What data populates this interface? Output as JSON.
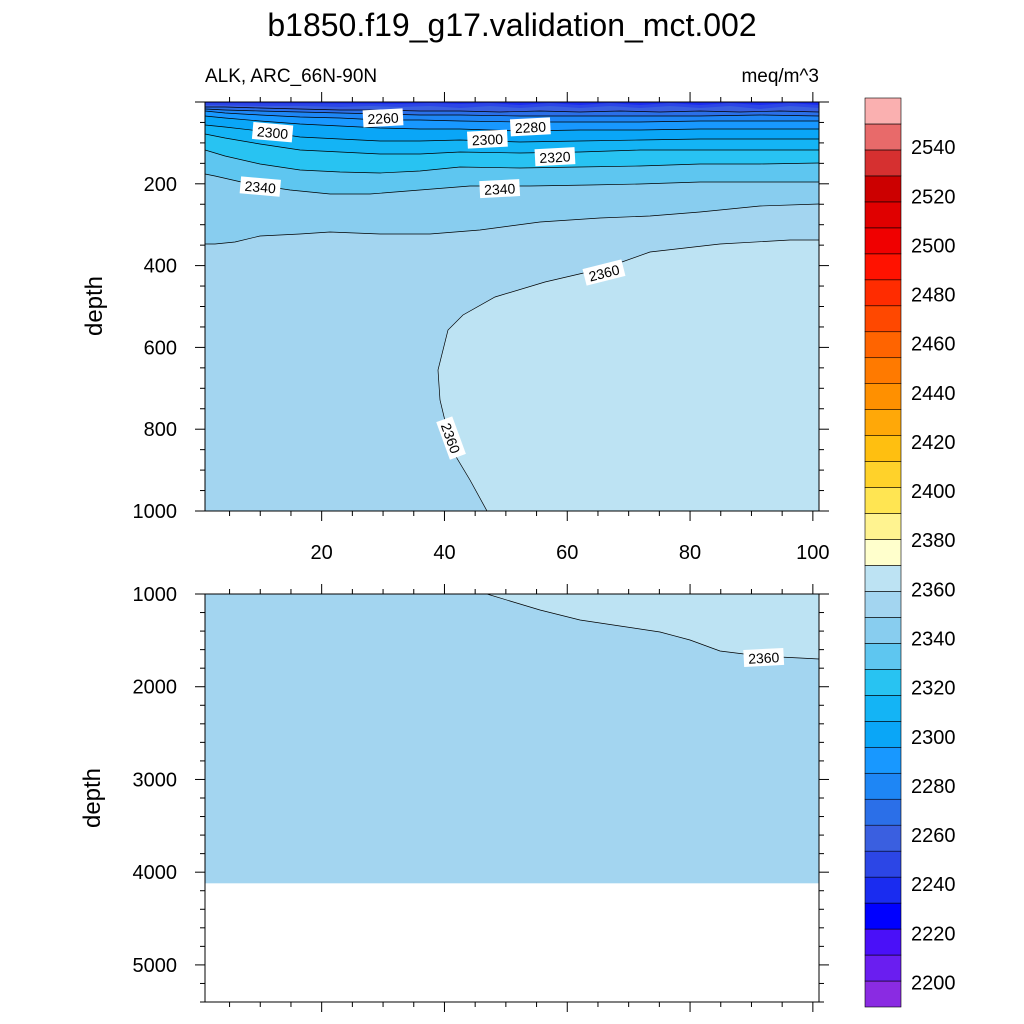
{
  "chart_data": {
    "type": "contour",
    "title": "b1850.f19_g17.validation_mct.002",
    "left_subtitle": "ALK, ARC_66N-90N",
    "right_subtitle": "meq/m^3",
    "panels": [
      {
        "name": "upper",
        "ylabel": "depth",
        "xlim": [
          1,
          101
        ],
        "ylim": [
          1000,
          0
        ],
        "xticks": [
          20,
          40,
          60,
          80,
          100
        ],
        "yticks": [
          200,
          400,
          600,
          800,
          1000
        ],
        "contour_labels": [
          {
            "text": "2260",
            "x": 30,
            "y": 40
          },
          {
            "text": "2300",
            "x": 12,
            "y": 75
          },
          {
            "text": "2300",
            "x": 47,
            "y": 92
          },
          {
            "text": "2280",
            "x": 54,
            "y": 62
          },
          {
            "text": "2320",
            "x": 58,
            "y": 135
          },
          {
            "text": "2340",
            "x": 10,
            "y": 208
          },
          {
            "text": "2340",
            "x": 49,
            "y": 213
          },
          {
            "text": "2360",
            "x": 66,
            "y": 418
          },
          {
            "text": "2360",
            "x": 41,
            "y": 822
          }
        ]
      },
      {
        "name": "lower",
        "ylabel": "depth",
        "xlim": [
          1,
          101
        ],
        "ylim": [
          5400,
          1000
        ],
        "yticks": [
          1000,
          2000,
          3000,
          4000,
          5000
        ],
        "no_data_below": 4120,
        "contour_labels": [
          {
            "text": "2360",
            "x": 92,
            "y": 1690
          }
        ]
      }
    ],
    "colorbar": {
      "min": 2190,
      "max": 2560,
      "interval": 10,
      "labels": [
        "2200",
        "2220",
        "2240",
        "2260",
        "2280",
        "2300",
        "2320",
        "2340",
        "2360",
        "2380",
        "2400",
        "2420",
        "2440",
        "2460",
        "2480",
        "2500",
        "2520",
        "2540"
      ],
      "colors": [
        "#8a2be2",
        "#6a1ef0",
        "#4a10f8",
        "#0000ff",
        "#1a2cf0",
        "#2c46e6",
        "#3a5fe0",
        "#2b6fe8",
        "#1e86f5",
        "#1898ff",
        "#0aa6f7",
        "#14b4f5",
        "#28c3f2",
        "#5ec6f0",
        "#88cdef",
        "#a3d5f0",
        "#bde3f3",
        "#ffffcc",
        "#fff390",
        "#ffe552",
        "#ffd22a",
        "#ffbf10",
        "#ffa808",
        "#ff9000",
        "#ff7a00",
        "#ff6400",
        "#ff4800",
        "#ff2c00",
        "#ff1200",
        "#f00000",
        "#e00000",
        "#cc0000",
        "#d63030",
        "#e86a6a",
        "#fab0b0"
      ]
    }
  }
}
